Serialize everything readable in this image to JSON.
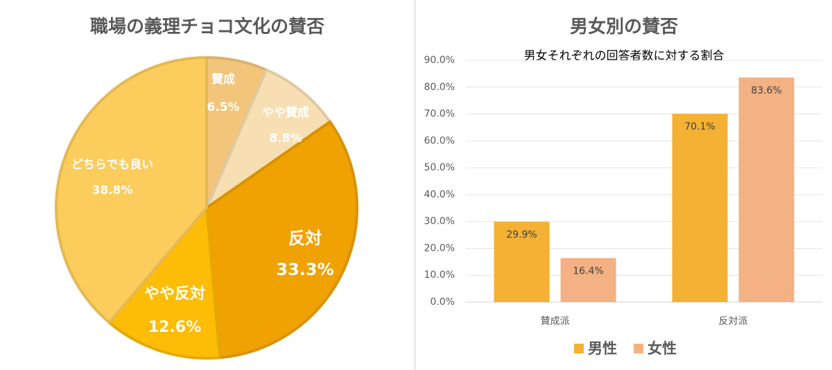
{
  "chart_data": [
    {
      "type": "pie",
      "title": "職場の義理チョコ文化の賛否",
      "start": "top, clockwise",
      "slices": [
        {
          "label": "賛成",
          "value": 6.5,
          "value_label": "6.5%",
          "color": "#f2c57a"
        },
        {
          "label": "やや賛成",
          "value": 8.8,
          "value_label": "8.8%",
          "color": "#f8dfb3"
        },
        {
          "label": "反対",
          "value": 33.3,
          "value_label": "33.3%",
          "color": "#f0a202"
        },
        {
          "label": "やや反対",
          "value": 12.6,
          "value_label": "12.6%",
          "color": "#fdbc05"
        },
        {
          "label": "どちらでも良い",
          "value": 38.8,
          "value_label": "38.8%",
          "color": "#fccd5c"
        }
      ]
    },
    {
      "type": "bar",
      "title": "男女別の賛否",
      "subtitle": "男女それぞれの回答者数に対する割合",
      "categories": [
        "賛成派",
        "反対派"
      ],
      "series": [
        {
          "name": "男性",
          "values": [
            29.9,
            70.1
          ],
          "labels": [
            "29.9%",
            "70.1%"
          ],
          "color": "#f4b133"
        },
        {
          "name": "女性",
          "values": [
            16.4,
            83.6
          ],
          "labels": [
            "16.4%",
            "83.6%"
          ],
          "color": "#f4b183"
        }
      ],
      "ylim": [
        0,
        90
      ],
      "yticks": [
        "0.0%",
        "10.0%",
        "20.0%",
        "30.0%",
        "40.0%",
        "50.0%",
        "60.0%",
        "70.0%",
        "80.0%",
        "90.0%"
      ],
      "grid": true,
      "legend": "bottom"
    }
  ]
}
